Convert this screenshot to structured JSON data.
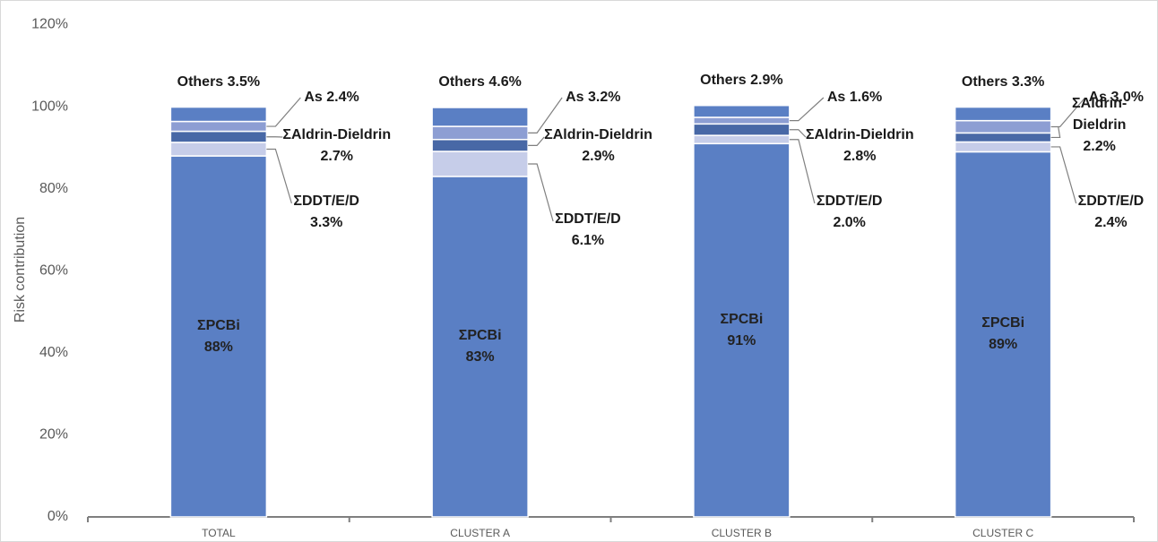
{
  "chart_data": {
    "type": "stacked_bar",
    "y_label": "Risk contribution",
    "categories": [
      "TOTAL",
      "CLUSTER A",
      "CLUSTER B",
      "CLUSTER C"
    ],
    "series": [
      {
        "name": "ΣPCBi",
        "color": "#5a7fc4",
        "values": [
          88,
          83,
          91,
          89
        ],
        "value_labels": [
          "88%",
          "83%",
          "91%",
          "89%"
        ]
      },
      {
        "name": "ΣDDT/E/D",
        "color": "#c6cde9",
        "values": [
          3.3,
          6.1,
          2.0,
          2.4
        ],
        "value_labels": [
          "3.3%",
          "6.1%",
          "2.0%",
          "2.4%"
        ]
      },
      {
        "name": "ΣAldrin-Dieldrin",
        "color": "#4868a6",
        "values": [
          2.7,
          2.9,
          2.8,
          2.2
        ],
        "value_labels": [
          "2.7%",
          "2.9%",
          "2.8%",
          "2.2%"
        ]
      },
      {
        "name": "As",
        "color": "#8d9ed3",
        "values": [
          2.4,
          3.2,
          1.6,
          3.0
        ],
        "value_labels": [
          "2.4%",
          "3.2%",
          "1.6%",
          "3.0%"
        ]
      },
      {
        "name": "Others",
        "color": "#5a7fc4",
        "values": [
          3.5,
          4.6,
          2.9,
          3.3
        ],
        "value_labels": [
          "3.5%",
          "4.6%",
          "2.9%",
          "3.3%"
        ]
      }
    ],
    "ylim": [
      0,
      120
    ],
    "yticks": [
      {
        "value": 0,
        "label": "0%"
      },
      {
        "value": 20,
        "label": "20%"
      },
      {
        "value": 40,
        "label": "40%"
      },
      {
        "value": 60,
        "label": "60%"
      },
      {
        "value": 80,
        "label": "80%"
      },
      {
        "value": 100,
        "label": "100%"
      },
      {
        "value": 120,
        "label": "120%"
      }
    ],
    "grid": false
  }
}
